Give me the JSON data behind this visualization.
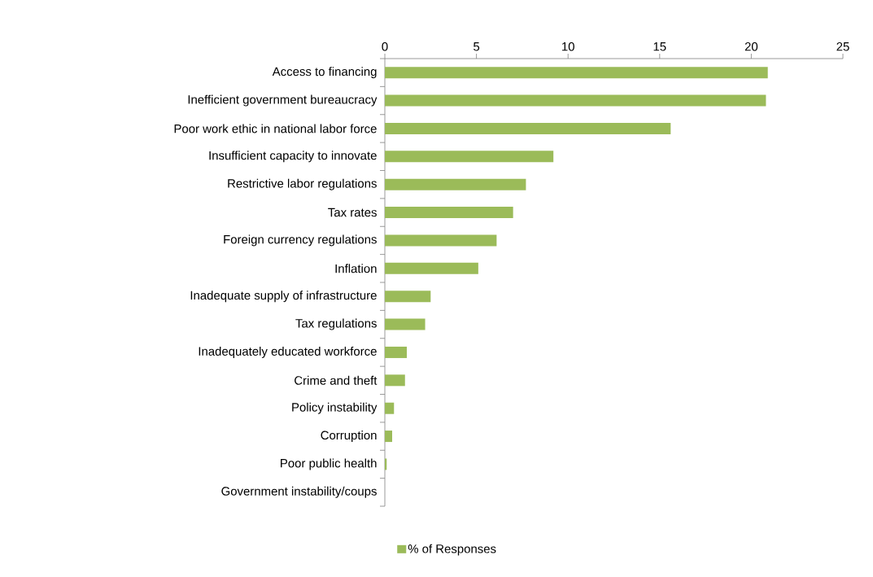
{
  "chart_data": {
    "type": "bar",
    "orientation": "horizontal",
    "categories": [
      "Access to financing",
      "Inefficient government bureaucracy",
      "Poor work ethic in national labor force",
      "Insufficient capacity to innovate",
      "Restrictive labor regulations",
      "Tax rates",
      "Foreign currency regulations",
      "Inflation",
      "Inadequate supply of infrastructure",
      "Tax regulations",
      "Inadequately educated workforce",
      "Crime and theft",
      "Policy instability",
      "Corruption",
      "Poor public health",
      "Government instability/coups"
    ],
    "series": [
      {
        "name": "% of Responses",
        "color": "#9bbb59",
        "values": [
          20.9,
          20.8,
          15.6,
          9.2,
          7.7,
          7.0,
          6.1,
          5.1,
          2.5,
          2.2,
          1.2,
          1.1,
          0.5,
          0.4,
          0.1,
          0
        ]
      }
    ],
    "xlim": [
      0,
      25
    ],
    "xticks": [
      0,
      5,
      10,
      15,
      20,
      25
    ],
    "legend": "bottom"
  }
}
